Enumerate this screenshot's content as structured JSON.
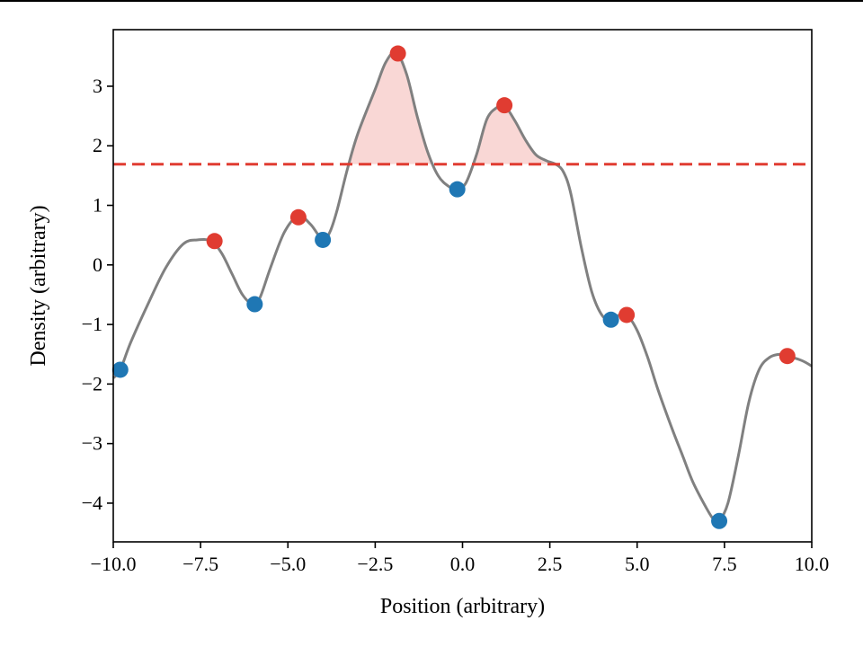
{
  "chart_data": {
    "type": "line",
    "title": "",
    "xlabel": "Position (arbitrary)",
    "ylabel": "Density (arbitrary)",
    "xlim": [
      -10,
      10
    ],
    "ylim": [
      -4.65,
      3.95
    ],
    "grid": false,
    "xticks": [
      -10,
      -7.5,
      -5,
      -2.5,
      0,
      2.5,
      5,
      7.5,
      10
    ],
    "xtick_labels": [
      "−10.0",
      "−7.5",
      "−5.0",
      "−2.5",
      "0.0",
      "2.5",
      "5.0",
      "7.5",
      "10.0"
    ],
    "yticks": [
      3,
      2,
      1,
      0,
      -1,
      -2,
      -3,
      -4
    ],
    "ytick_labels": [
      "3",
      "2",
      "1",
      "0",
      "−1",
      "−2",
      "−3",
      "−4"
    ],
    "curve": {
      "x": [
        -10.0,
        -9.8,
        -9.5,
        -9.0,
        -8.5,
        -8.0,
        -7.6,
        -7.2,
        -6.9,
        -6.6,
        -6.3,
        -6.0,
        -5.8,
        -5.5,
        -5.1,
        -4.7,
        -4.35,
        -4.0,
        -3.8,
        -3.6,
        -3.3,
        -3.0,
        -2.5,
        -2.2,
        -1.9,
        -1.6,
        -1.3,
        -1.0,
        -0.7,
        -0.4,
        -0.15,
        0.1,
        0.4,
        0.7,
        1.0,
        1.2,
        1.5,
        1.8,
        2.1,
        2.4,
        2.7,
        2.9,
        3.1,
        3.4,
        3.7,
        4.0,
        4.25,
        4.45,
        4.7,
        5.0,
        5.3,
        5.6,
        6.0,
        6.3,
        6.6,
        7.0,
        7.2,
        7.35,
        7.6,
        7.9,
        8.2,
        8.5,
        8.8,
        9.1,
        9.3,
        9.6,
        9.8,
        10.0
      ],
      "y": [
        -1.9,
        -1.76,
        -1.3,
        -0.65,
        -0.05,
        0.35,
        0.42,
        0.4,
        0.2,
        -0.15,
        -0.5,
        -0.66,
        -0.55,
        -0.05,
        0.55,
        0.82,
        0.68,
        0.42,
        0.55,
        0.9,
        1.6,
        2.2,
        2.95,
        3.4,
        3.57,
        3.2,
        2.5,
        1.9,
        1.5,
        1.32,
        1.27,
        1.38,
        1.85,
        2.45,
        2.65,
        2.68,
        2.42,
        2.1,
        1.85,
        1.75,
        1.68,
        1.55,
        1.2,
        0.3,
        -0.45,
        -0.85,
        -0.92,
        -0.85,
        -0.84,
        -1.1,
        -1.55,
        -2.1,
        -2.75,
        -3.2,
        -3.65,
        -4.1,
        -4.28,
        -4.3,
        -4.0,
        -3.2,
        -2.3,
        -1.75,
        -1.55,
        -1.5,
        -1.53,
        -1.58,
        -1.63,
        -1.7
      ],
      "color": "#808080"
    },
    "threshold": {
      "y": 1.69,
      "color": "#e03c31",
      "style": "dashed"
    },
    "shaded_region": {
      "description_color": "#f4b6b2"
    },
    "series": [
      {
        "name": "",
        "role": "peaks",
        "color": "#e03c31",
        "x": [
          -7.1,
          -4.7,
          -1.85,
          1.2,
          4.7,
          9.3
        ],
        "y": [
          0.4,
          0.8,
          3.55,
          2.68,
          -0.84,
          -1.53
        ]
      },
      {
        "name": "",
        "role": "troughs",
        "color": "#1f77b4",
        "x": [
          -9.8,
          -5.95,
          -4.0,
          -0.15,
          4.25,
          7.35
        ],
        "y": [
          -1.76,
          -0.66,
          0.42,
          1.27,
          -0.92,
          -4.3
        ]
      }
    ]
  }
}
